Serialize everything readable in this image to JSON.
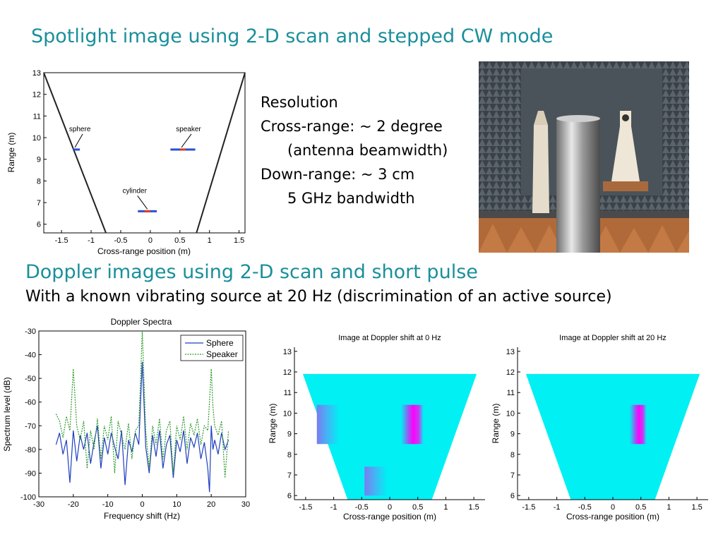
{
  "slide": {
    "title_top": "Spotlight image using 2-D scan and stepped CW mode",
    "title_bottom": "Doppler images using 2-D scan and short pulse",
    "subtitle_bottom": "With a known vibrating source at 20 Hz (discrimination of an active source)"
  },
  "resolution": {
    "heading": "Resolution",
    "cross_range": "Cross-range: ~ 2 degree",
    "cross_range_note": "(antenna beamwidth)",
    "down_range": "Down-range: ~ 3 cm",
    "down_range_note": "5 GHz bandwidth"
  },
  "chart_data": [
    {
      "type": "scatter",
      "title": "",
      "xlabel": "Cross-range position (m)",
      "ylabel": "Range (m)",
      "xlim": [
        -1.8,
        1.6
      ],
      "ylim": [
        5.6,
        13
      ],
      "x_ticks": [
        -1.5,
        -1,
        -0.5,
        0,
        0.5,
        1,
        1.5
      ],
      "y_ticks": [
        6,
        7,
        8,
        9,
        10,
        11,
        12,
        13
      ],
      "beam_edges": [
        {
          "x": [
            -1.8,
            -0.75
          ],
          "y": [
            13,
            5.6
          ]
        },
        {
          "x": [
            1.6,
            0.78
          ],
          "y": [
            13,
            5.6
          ]
        }
      ],
      "targets": [
        {
          "label": "sphere",
          "x": -1.25,
          "y": 9.45
        },
        {
          "label": "speaker",
          "x": 0.55,
          "y": 9.45
        },
        {
          "label": "cylinder",
          "x": -0.05,
          "y": 6.6
        }
      ]
    },
    {
      "type": "line",
      "title": "Doppler Spectra",
      "xlabel": "Frequency shift (Hz)",
      "ylabel": "Spectrum level (dB)",
      "xlim": [
        -30,
        30
      ],
      "ylim": [
        -100,
        -30
      ],
      "x_ticks": [
        -30,
        -20,
        -10,
        0,
        10,
        20,
        30
      ],
      "y_ticks": [
        -30,
        -40,
        -50,
        -60,
        -70,
        -80,
        -90,
        -100
      ],
      "legend_position": "top-right",
      "series": [
        {
          "name": "Sphere",
          "color": "#1f3fbf",
          "x": [
            -25,
            -24,
            -23,
            -22,
            -21,
            -20,
            -19,
            -18,
            -17,
            -16,
            -15,
            -14,
            -13,
            -12,
            -11,
            -10,
            -9,
            -8,
            -7,
            -6,
            -5,
            -4,
            -3,
            -2,
            -1,
            -0.5,
            0,
            0.5,
            1,
            2,
            3,
            4,
            5,
            6,
            7,
            8,
            9,
            10,
            11,
            12,
            13,
            14,
            15,
            16,
            17,
            18,
            19,
            19.5,
            20,
            20.5,
            21,
            22,
            23,
            24,
            25
          ],
          "y": [
            -78,
            -73,
            -82,
            -76,
            -94,
            -72,
            -85,
            -74,
            -80,
            -73,
            -86,
            -77,
            -70,
            -88,
            -75,
            -82,
            -73,
            -79,
            -84,
            -72,
            -95,
            -76,
            -81,
            -73,
            -78,
            -60,
            -43,
            -60,
            -79,
            -90,
            -74,
            -83,
            -72,
            -88,
            -78,
            -74,
            -92,
            -76,
            -81,
            -72,
            -86,
            -75,
            -79,
            -73,
            -84,
            -77,
            -88,
            -98,
            -70,
            -80,
            -76,
            -82,
            -73,
            -80,
            -76
          ]
        },
        {
          "name": "Speaker",
          "color": "#2e9a2e",
          "x": [
            -25,
            -24,
            -23,
            -22,
            -21,
            -20,
            -19,
            -18,
            -17,
            -16,
            -15,
            -14,
            -13,
            -12,
            -11,
            -10,
            -9,
            -8,
            -7,
            -6,
            -5,
            -4,
            -3,
            -2,
            -1,
            -0.5,
            0,
            0.5,
            1,
            2,
            3,
            4,
            5,
            6,
            7,
            8,
            9,
            10,
            11,
            12,
            13,
            14,
            15,
            16,
            17,
            18,
            19,
            19.5,
            20,
            20.5,
            21,
            22,
            23,
            24,
            25
          ],
          "y": [
            -65,
            -68,
            -75,
            -66,
            -72,
            -46,
            -70,
            -76,
            -68,
            -88,
            -72,
            -80,
            -67,
            -84,
            -70,
            -76,
            -66,
            -90,
            -68,
            -74,
            -80,
            -69,
            -84,
            -72,
            -70,
            -50,
            -30,
            -50,
            -72,
            -88,
            -70,
            -78,
            -67,
            -84,
            -72,
            -68,
            -90,
            -70,
            -76,
            -66,
            -80,
            -69,
            -74,
            -67,
            -78,
            -70,
            -72,
            -60,
            -46,
            -62,
            -70,
            -74,
            -68,
            -92,
            -72
          ]
        }
      ]
    },
    {
      "type": "heatmap",
      "title": "Image at Doppler shift at 0 Hz",
      "xlabel": "Cross-range position (m)",
      "ylabel": "Range (m)",
      "xlim": [
        -1.7,
        1.7
      ],
      "ylim": [
        5.8,
        13.2
      ],
      "x_ticks": [
        -1.5,
        -1,
        -0.5,
        0,
        0.5,
        1,
        1.5
      ],
      "y_ticks": [
        6,
        7,
        8,
        9,
        10,
        11,
        12,
        13
      ],
      "region": {
        "top_y": 11.9,
        "top_x": [
          -1.55,
          1.55
        ],
        "bottom_y": 5.8,
        "bottom_x": [
          -0.75,
          0.75
        ]
      },
      "hotspots": [
        {
          "label": "sphere",
          "x": [
            -1.3,
            -0.9
          ],
          "y": [
            8.5,
            10.4
          ],
          "intensity": "low"
        },
        {
          "label": "speaker",
          "x": [
            0.2,
            0.6
          ],
          "y": [
            8.5,
            10.4
          ],
          "intensity": "high"
        },
        {
          "label": "cylinder",
          "x": [
            -0.45,
            -0.05
          ],
          "y": [
            6.0,
            7.4
          ],
          "intensity": "low"
        }
      ]
    },
    {
      "type": "heatmap",
      "title": "Image at Doppler shift at 20 Hz",
      "xlabel": "Cross-range position (m)",
      "ylabel": "Range (m)",
      "xlim": [
        -1.7,
        1.7
      ],
      "ylim": [
        5.8,
        13.2
      ],
      "x_ticks": [
        -1.5,
        -1,
        -0.5,
        0,
        0.5,
        1,
        1.5
      ],
      "y_ticks": [
        6,
        7,
        8,
        9,
        10,
        11,
        12,
        13
      ],
      "region": {
        "top_y": 11.9,
        "top_x": [
          -1.55,
          1.55
        ],
        "bottom_y": 5.8,
        "bottom_x": [
          -0.75,
          0.75
        ]
      },
      "hotspots": [
        {
          "label": "speaker",
          "x": [
            0.3,
            0.6
          ],
          "y": [
            8.5,
            10.4
          ],
          "intensity": "high"
        }
      ]
    }
  ]
}
